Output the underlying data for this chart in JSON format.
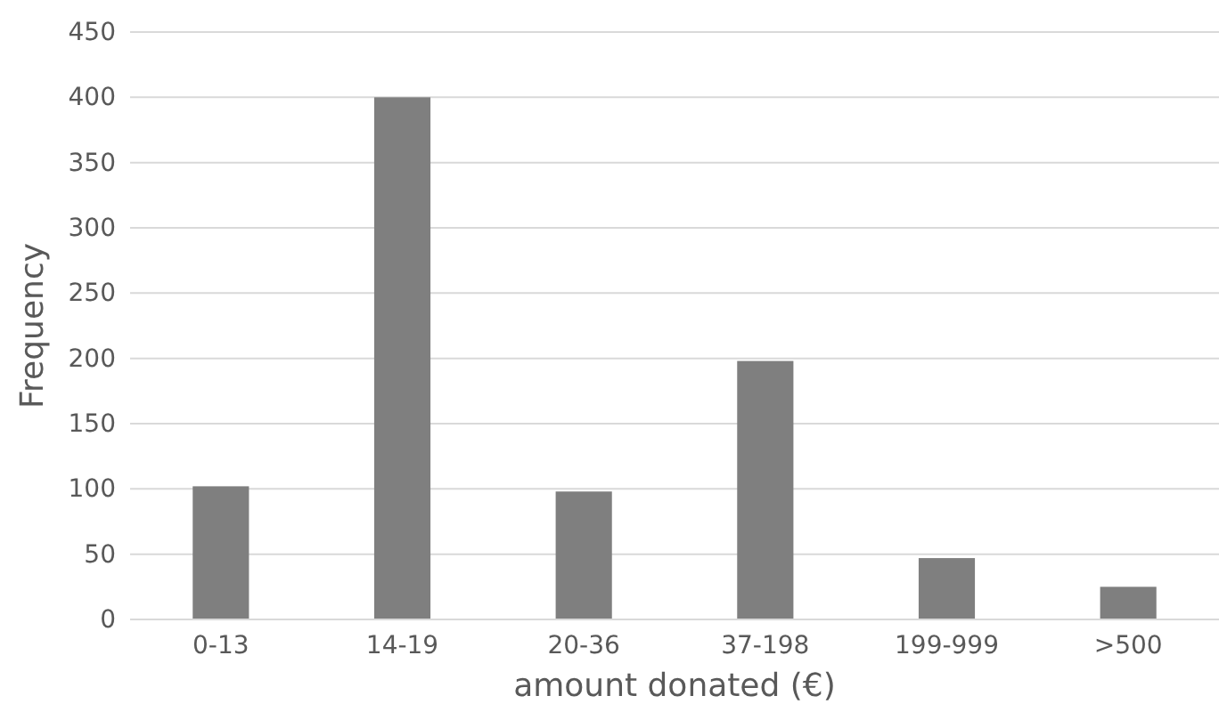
{
  "chart_data": {
    "type": "bar",
    "xlabel": "amount donated (€)",
    "ylabel": "Frequency",
    "categories": [
      "0-13",
      "14-19",
      "20-36",
      "37-198",
      "199-999",
      ">500"
    ],
    "values": [
      102,
      400,
      98,
      198,
      47,
      25
    ],
    "color": "#7f7f7f",
    "ylim": [
      0,
      450
    ],
    "yticks": [
      0,
      50,
      100,
      150,
      200,
      250,
      300,
      350,
      400,
      450
    ],
    "grid": "y"
  }
}
